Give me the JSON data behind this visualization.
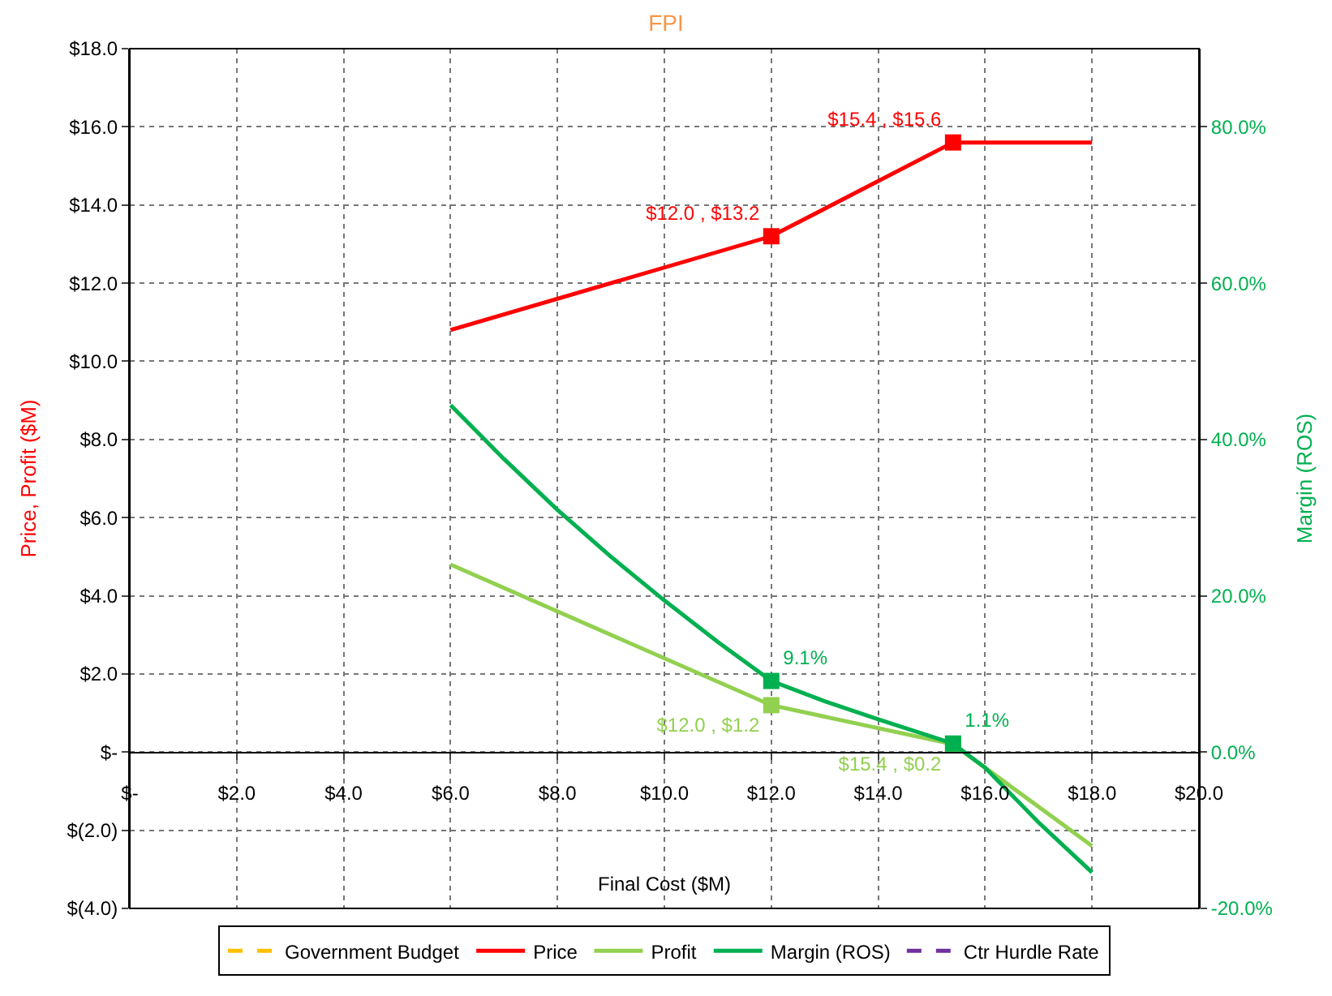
{
  "chart_data": {
    "type": "line",
    "title": "FPI",
    "xlabel": "Final Cost ($M)",
    "ylabel": "Price, Profit ($M)",
    "y2label": "Margin (ROS)",
    "xlim": [
      0,
      20
    ],
    "xticks": [
      {
        "value": 0,
        "label": "$-"
      },
      {
        "value": 2,
        "label": "$2.0"
      },
      {
        "value": 4,
        "label": "$4.0"
      },
      {
        "value": 6,
        "label": "$6.0"
      },
      {
        "value": 8,
        "label": "$8.0"
      },
      {
        "value": 10,
        "label": "$10.0"
      },
      {
        "value": 12,
        "label": "$12.0"
      },
      {
        "value": 14,
        "label": "$14.0"
      },
      {
        "value": 16,
        "label": "$16.0"
      },
      {
        "value": 18,
        "label": "$18.0"
      },
      {
        "value": 20,
        "label": "$20.0"
      }
    ],
    "ylim": [
      -4,
      18
    ],
    "yticks": [
      {
        "value": -4,
        "label": "$(4.0)"
      },
      {
        "value": -2,
        "label": "$(2.0)"
      },
      {
        "value": 0,
        "label": "$-"
      },
      {
        "value": 2,
        "label": "$2.0"
      },
      {
        "value": 4,
        "label": "$4.0"
      },
      {
        "value": 6,
        "label": "$6.0"
      },
      {
        "value": 8,
        "label": "$8.0"
      },
      {
        "value": 10,
        "label": "$10.0"
      },
      {
        "value": 12,
        "label": "$12.0"
      },
      {
        "value": 14,
        "label": "$14.0"
      },
      {
        "value": 16,
        "label": "$16.0"
      },
      {
        "value": 18,
        "label": "$18.0"
      }
    ],
    "y2lim": [
      -20,
      90
    ],
    "y2ticks": [
      {
        "value": -20,
        "label": "-20.0%"
      },
      {
        "value": 0,
        "label": "0.0%"
      },
      {
        "value": 20,
        "label": "20.0%"
      },
      {
        "value": 40,
        "label": "40.0%"
      },
      {
        "value": 60,
        "label": "60.0%"
      },
      {
        "value": 80,
        "label": "80.0%"
      }
    ],
    "grid": true,
    "legend": "bottom",
    "marker": "none",
    "series": [
      {
        "name": "Government Budget",
        "color": "#ffc000",
        "line_style": "dashed"
      },
      {
        "name": "Price",
        "color": "#ff0000",
        "x": [
          6,
          12,
          15.4,
          18
        ],
        "values": [
          10.8,
          13.2,
          15.6,
          15.6
        ]
      },
      {
        "name": "Profit",
        "color": "#92d050",
        "x": [
          6,
          12,
          15.4,
          18
        ],
        "values": [
          4.8,
          1.2,
          0.2,
          -2.4
        ]
      },
      {
        "name": "Margin (ROS)",
        "color": "#00b050",
        "axis": "y2",
        "x": [
          6,
          7,
          8,
          9,
          10,
          11,
          12,
          13,
          14,
          15.4,
          16,
          17,
          18
        ],
        "values": [
          44.4,
          37.5,
          31.0,
          25.0,
          19.4,
          14.1,
          9.1,
          6.5,
          4.2,
          1.1,
          -2.0,
          -9.0,
          -15.4
        ]
      },
      {
        "name": "Ctr Hurdle Rate",
        "color": "#7030a0",
        "line_style": "dashed"
      },
      {
        "type": "scatter",
        "color": "#ff0000",
        "marker": "square",
        "x": [
          12,
          15.4
        ],
        "values": [
          13.2,
          15.6
        ],
        "value_labels": [
          "$12.0 , $13.2",
          "$15.4 , $15.6"
        ]
      },
      {
        "type": "scatter",
        "color": "#92d050",
        "marker": "square",
        "x": [
          12,
          15.4
        ],
        "values": [
          1.2,
          0.2
        ],
        "value_labels": [
          "$12.0 , $1.2",
          "$15.4 , $0.2"
        ]
      },
      {
        "type": "scatter",
        "color": "#00b050",
        "marker": "square",
        "axis": "y2",
        "x": [
          12,
          15.4
        ],
        "values": [
          9.1,
          1.1
        ],
        "value_labels": [
          "9.1%",
          "1.1%"
        ]
      }
    ]
  }
}
